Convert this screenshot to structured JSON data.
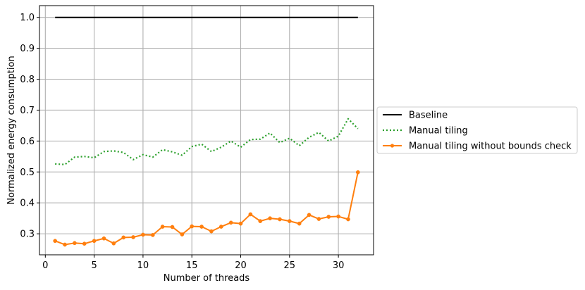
{
  "chart_data": {
    "type": "line",
    "title": "",
    "xlabel": "Number of threads",
    "ylabel": "Normalized energy consumption",
    "xlim": [
      -0.6,
      33.6
    ],
    "ylim": [
      0.232,
      1.038
    ],
    "xticks": [
      0,
      5,
      10,
      15,
      20,
      25,
      30
    ],
    "yticks": [
      0.3,
      0.4,
      0.5,
      0.6,
      0.7,
      0.8,
      0.9,
      1.0
    ],
    "xtick_labels": [
      "0",
      "5",
      "10",
      "15",
      "20",
      "25",
      "30"
    ],
    "ytick_labels": [
      "0.3",
      "0.4",
      "0.5",
      "0.6",
      "0.7",
      "0.8",
      "0.9",
      "1.0"
    ],
    "grid": true,
    "legend_position": "outside-right",
    "x": [
      1,
      2,
      3,
      4,
      5,
      6,
      7,
      8,
      9,
      10,
      11,
      12,
      13,
      14,
      15,
      16,
      17,
      18,
      19,
      20,
      21,
      22,
      23,
      24,
      25,
      26,
      27,
      28,
      29,
      30,
      31,
      32
    ],
    "series": [
      {
        "name": "Baseline",
        "color": "#000000",
        "style": "solid",
        "marker": "none",
        "values": [
          1.0,
          1.0,
          1.0,
          1.0,
          1.0,
          1.0,
          1.0,
          1.0,
          1.0,
          1.0,
          1.0,
          1.0,
          1.0,
          1.0,
          1.0,
          1.0,
          1.0,
          1.0,
          1.0,
          1.0,
          1.0,
          1.0,
          1.0,
          1.0,
          1.0,
          1.0,
          1.0,
          1.0,
          1.0,
          1.0,
          1.0,
          1.0
        ]
      },
      {
        "name": "Manual tiling",
        "color": "#2ca02c",
        "style": "dotted",
        "marker": "none",
        "values": [
          0.526,
          0.524,
          0.548,
          0.55,
          0.546,
          0.566,
          0.568,
          0.563,
          0.54,
          0.556,
          0.548,
          0.572,
          0.565,
          0.554,
          0.582,
          0.59,
          0.566,
          0.58,
          0.6,
          0.58,
          0.605,
          0.606,
          0.626,
          0.595,
          0.609,
          0.585,
          0.612,
          0.628,
          0.6,
          0.616,
          0.672,
          0.64
        ]
      },
      {
        "name": "Manual tiling without bounds check",
        "color": "#ff7f0e",
        "style": "solid",
        "marker": "circle",
        "values": [
          0.277,
          0.265,
          0.27,
          0.268,
          0.277,
          0.285,
          0.269,
          0.288,
          0.289,
          0.297,
          0.296,
          0.323,
          0.322,
          0.298,
          0.324,
          0.323,
          0.308,
          0.323,
          0.336,
          0.333,
          0.363,
          0.341,
          0.35,
          0.347,
          0.341,
          0.333,
          0.361,
          0.348,
          0.355,
          0.356,
          0.347,
          0.499
        ]
      }
    ]
  }
}
